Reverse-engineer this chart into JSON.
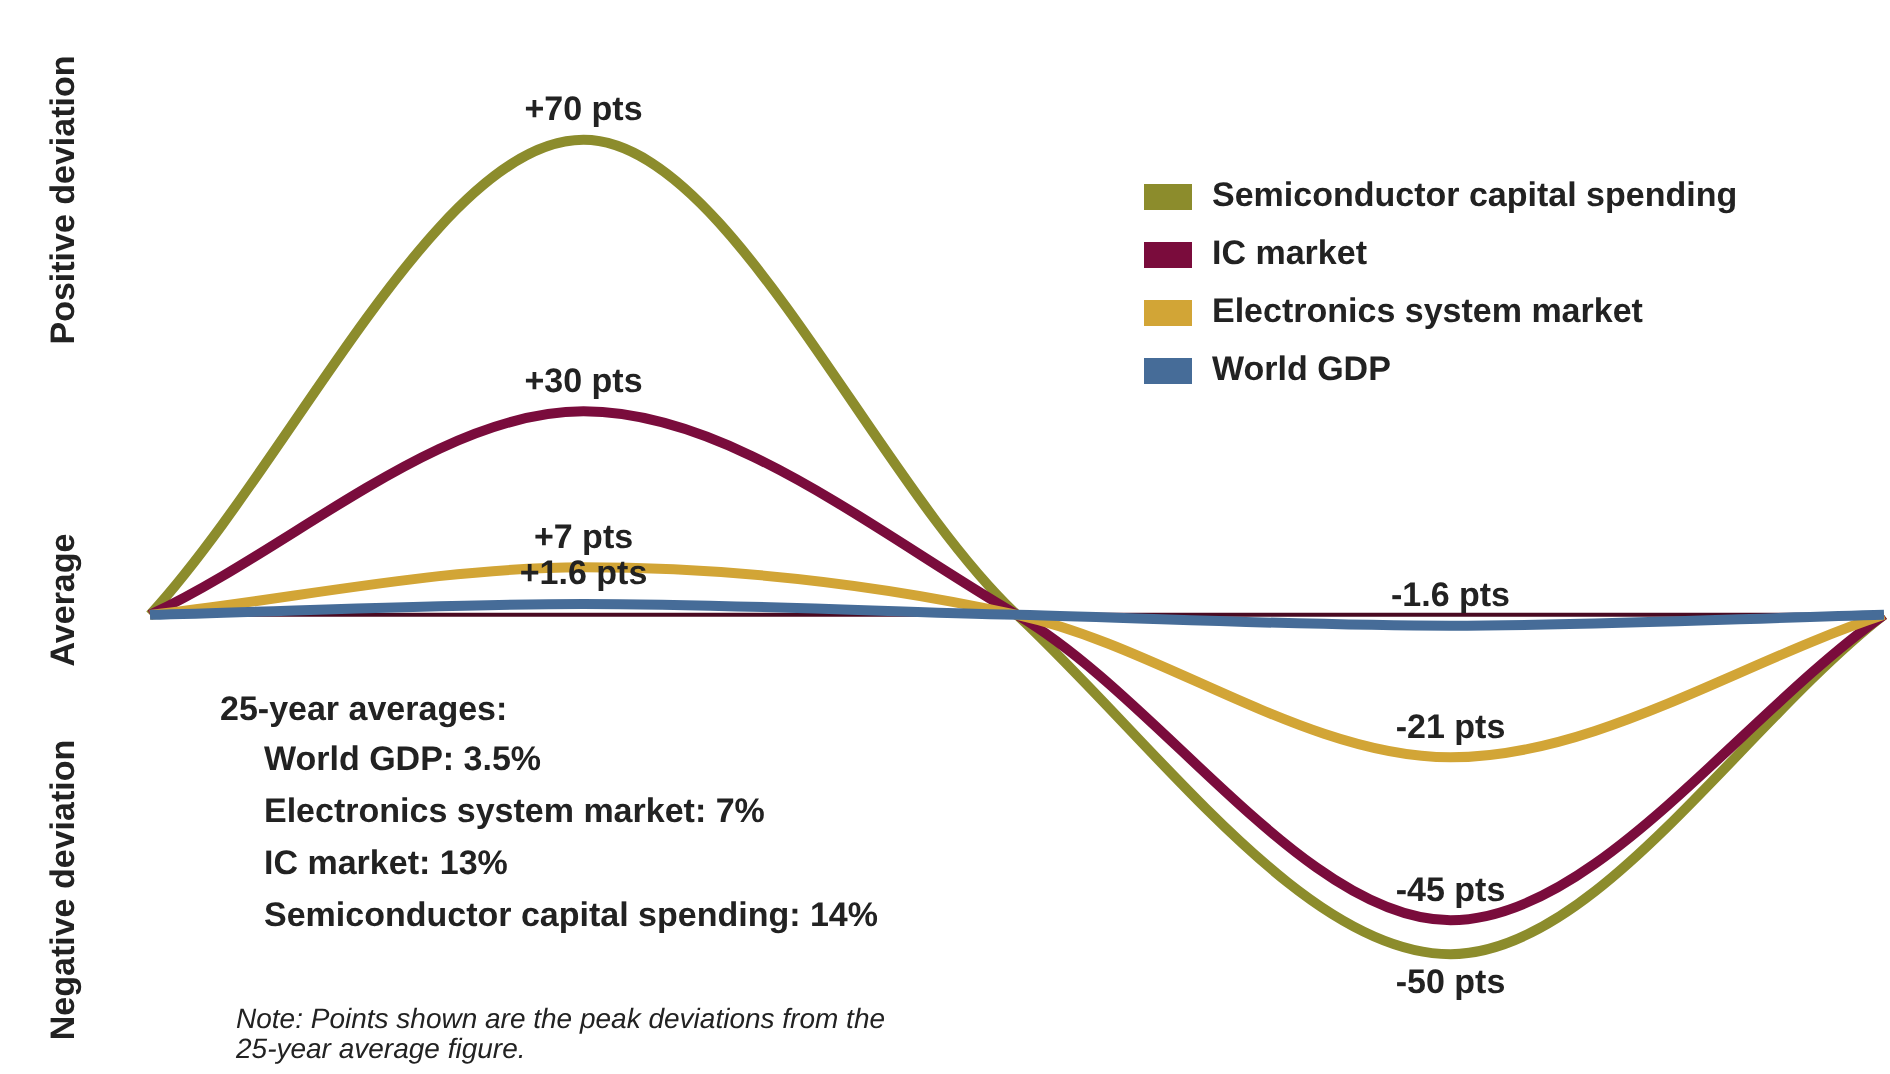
{
  "chart_data": {
    "type": "line",
    "categories": [
      null,
      null,
      null,
      null,
      null
    ],
    "series": [
      {
        "name": "Semiconductor capital spending",
        "color": "#8c8c2c",
        "values": [
          0,
          70,
          0,
          -50,
          0
        ],
        "value_labels": [
          null,
          "+70 pts",
          null,
          "-50 pts",
          null
        ]
      },
      {
        "name": "IC market",
        "color": "#7a0c3c",
        "values": [
          0,
          30,
          0,
          -45,
          0
        ],
        "value_labels": [
          null,
          "+30 pts",
          null,
          "-45 pts",
          null
        ]
      },
      {
        "name": "Electronics system market",
        "color": "#d2a536",
        "values": [
          0,
          7,
          0,
          -21,
          0
        ],
        "value_labels": [
          null,
          "+7 pts",
          null,
          "-21 pts",
          null
        ]
      },
      {
        "name": "World GDP",
        "color": "#466c98",
        "values": [
          0,
          1.6,
          0,
          -1.6,
          0
        ],
        "value_labels": [
          null,
          "+1.6 pts",
          null,
          "-1.6 pts",
          null
        ]
      }
    ],
    "ref_lines": [
      {
        "axis": "y",
        "value": 0,
        "color": "#4a0a22"
      }
    ],
    "legend": "top right",
    "marker": "none",
    "line_style": "solid",
    "grid": false,
    "annotations": [
      {
        "text": "Positive deviation"
      },
      {
        "text": "Average"
      },
      {
        "text": "Negative deviation"
      },
      {
        "text": "25-year averages:"
      },
      {
        "text": "World GDP: 3.5%"
      },
      {
        "text": "Electronics system market: 7%"
      },
      {
        "text": "IC market: 13%"
      },
      {
        "text": "Semiconductor capital spending: 14%"
      },
      {
        "text": "Note: Points shown are the peak deviations from the 25-year average figure."
      }
    ]
  }
}
